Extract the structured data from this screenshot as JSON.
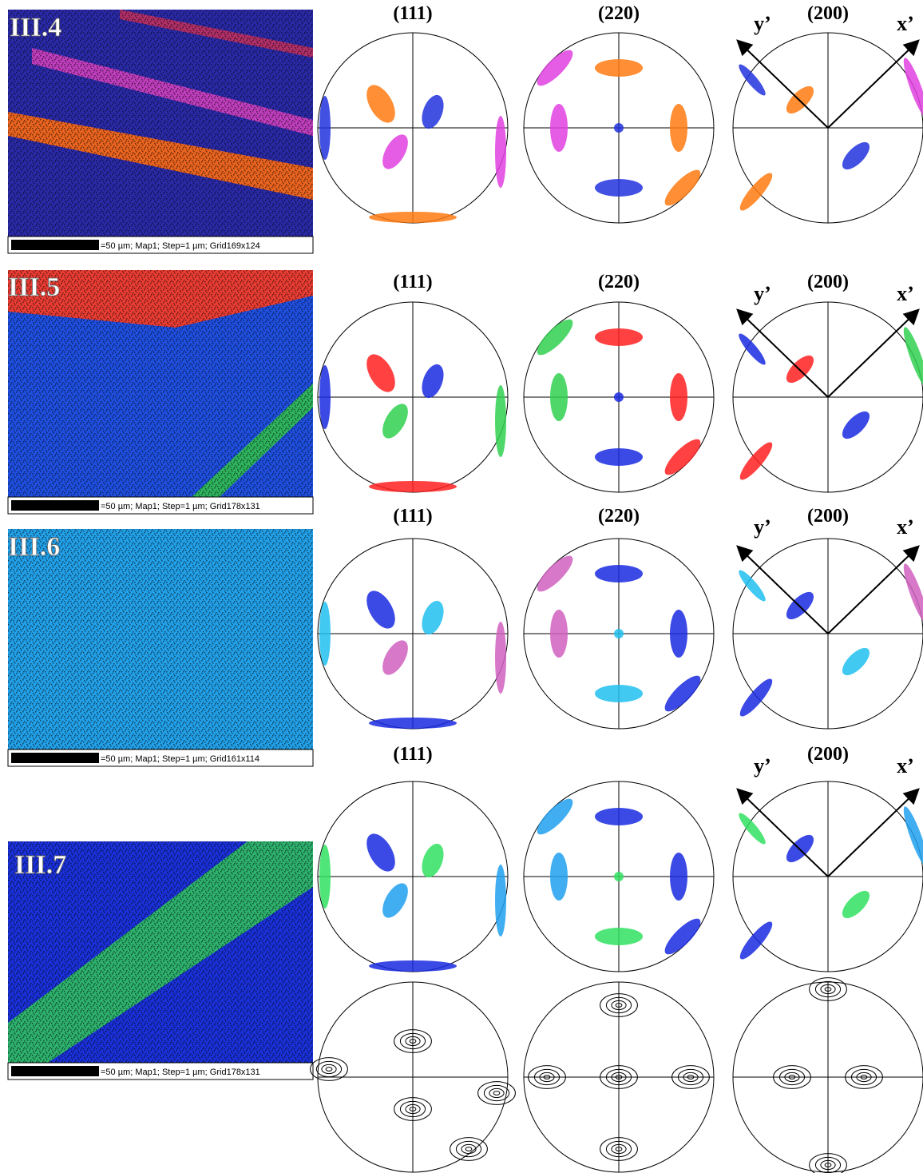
{
  "panels": [
    {
      "label": "III.4",
      "scale_caption": "=50 µm; Map1; Step=1 µm; Grid169x124",
      "pole_figure_titles": [
        "(111)",
        "(220)",
        "(200)"
      ],
      "axis_labels": [
        "y’",
        "x’"
      ]
    },
    {
      "label": "III.5",
      "scale_caption": "=50 µm; Map1; Step=1 µm; Grid178x131",
      "pole_figure_titles": [
        "(111)",
        "(220)",
        "(200)"
      ],
      "axis_labels": [
        "y’",
        "x’"
      ]
    },
    {
      "label": "III.6",
      "scale_caption": "=50 µm; Map1; Step=1 µm; Grid161x114",
      "pole_figure_titles": [
        "(111)",
        "(220)",
        "(200)"
      ],
      "axis_labels": [
        "y’",
        "x’"
      ]
    },
    {
      "label": "III.7",
      "scale_caption": "=50 µm; Map1; Step=1 µm; Grid178x131",
      "pole_figure_titles": [
        "(111)",
        "(200)"
      ],
      "axis_labels": [
        "y’",
        "x’"
      ]
    }
  ]
}
